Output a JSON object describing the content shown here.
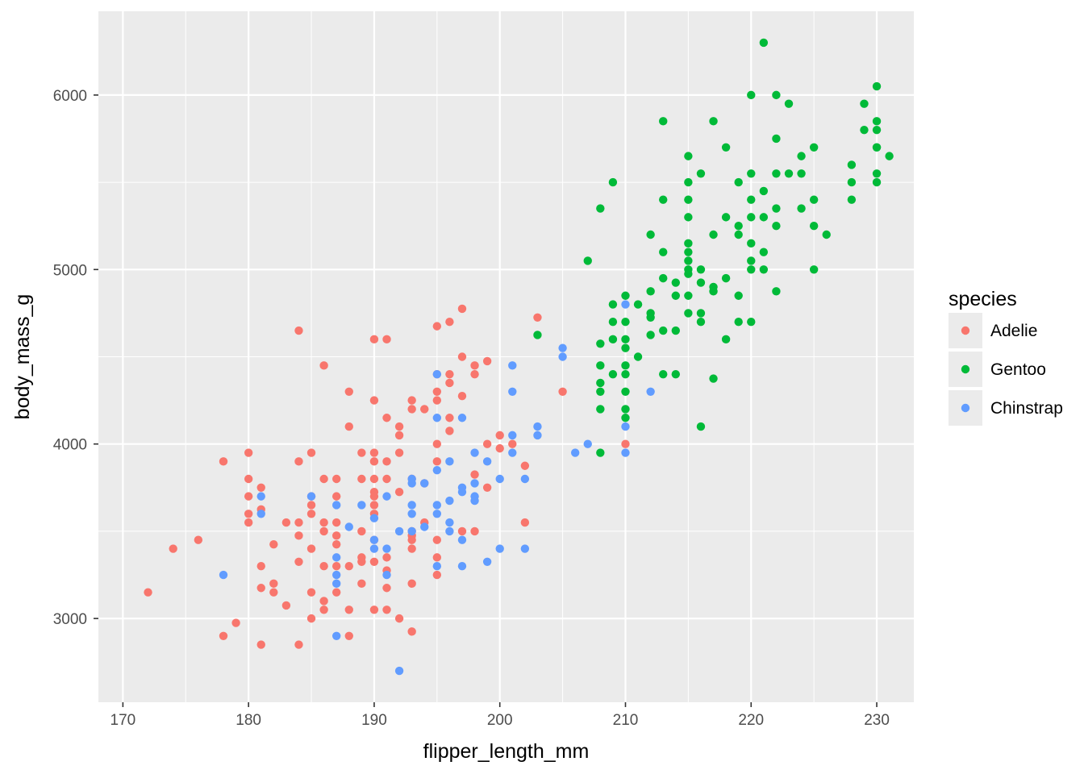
{
  "colors": {
    "panel_bg": "#EBEBEB",
    "grid_major": "#FFFFFF",
    "tick_text": "#4D4D4D",
    "axis_title": "#000000",
    "legend_key_bg": "#EBEBEB"
  },
  "chart_data": {
    "type": "scatter",
    "xlabel": "flipper_length_mm",
    "ylabel": "body_mass_g",
    "xlim": [
      168.05,
      232.95
    ],
    "ylim": [
      2520,
      6480
    ],
    "x_ticks": [
      170,
      180,
      190,
      200,
      210,
      220,
      230
    ],
    "x_tick_labels": [
      "170",
      "180",
      "190",
      "200",
      "210",
      "220",
      "230"
    ],
    "y_ticks": [
      3000,
      4000,
      5000,
      6000
    ],
    "y_tick_labels": [
      "3000",
      "4000",
      "5000",
      "6000"
    ],
    "grid": true,
    "legend": {
      "title": "species",
      "position": "right",
      "entries": [
        "Adelie",
        "Gentoo",
        "Chinstrap"
      ]
    },
    "series": [
      {
        "name": "Adelie",
        "color": "#F8766D",
        "points": [
          [
            172,
            3150
          ],
          [
            174,
            3400
          ],
          [
            176,
            3450
          ],
          [
            178,
            3900
          ],
          [
            178,
            2900
          ],
          [
            179,
            2975
          ],
          [
            180,
            3950
          ],
          [
            180,
            3800
          ],
          [
            180,
            3700
          ],
          [
            180,
            3600
          ],
          [
            180,
            3550
          ],
          [
            181,
            3750
          ],
          [
            181,
            3625
          ],
          [
            181,
            3300
          ],
          [
            181,
            3175
          ],
          [
            181,
            2850
          ],
          [
            182,
            3425
          ],
          [
            182,
            3200
          ],
          [
            182,
            3150
          ],
          [
            183,
            3550
          ],
          [
            183,
            3075
          ],
          [
            184,
            4650
          ],
          [
            184,
            3900
          ],
          [
            184,
            3550
          ],
          [
            184,
            3475
          ],
          [
            184,
            3325
          ],
          [
            184,
            2850
          ],
          [
            185,
            3950
          ],
          [
            185,
            3700
          ],
          [
            185,
            3650
          ],
          [
            185,
            3600
          ],
          [
            185,
            3400
          ],
          [
            185,
            3150
          ],
          [
            185,
            3000
          ],
          [
            186,
            4450
          ],
          [
            186,
            3800
          ],
          [
            186,
            3550
          ],
          [
            186,
            3500
          ],
          [
            186,
            3300
          ],
          [
            186,
            3100
          ],
          [
            186,
            3050
          ],
          [
            187,
            3800
          ],
          [
            187,
            3700
          ],
          [
            187,
            3550
          ],
          [
            187,
            3475
          ],
          [
            187,
            3425
          ],
          [
            187,
            3300
          ],
          [
            187,
            3150
          ],
          [
            188,
            4300
          ],
          [
            188,
            4100
          ],
          [
            188,
            3300
          ],
          [
            188,
            3050
          ],
          [
            188,
            2900
          ],
          [
            189,
            3950
          ],
          [
            189,
            3800
          ],
          [
            189,
            3500
          ],
          [
            189,
            3350
          ],
          [
            189,
            3325
          ],
          [
            189,
            3200
          ],
          [
            190,
            4600
          ],
          [
            190,
            4250
          ],
          [
            190,
            3950
          ],
          [
            190,
            3900
          ],
          [
            190,
            3800
          ],
          [
            190,
            3725
          ],
          [
            190,
            3700
          ],
          [
            190,
            3650
          ],
          [
            190,
            3600
          ],
          [
            190,
            3450
          ],
          [
            190,
            3325
          ],
          [
            190,
            3050
          ],
          [
            191,
            4600
          ],
          [
            191,
            4150
          ],
          [
            191,
            3900
          ],
          [
            191,
            3800
          ],
          [
            191,
            3350
          ],
          [
            191,
            3275
          ],
          [
            191,
            3175
          ],
          [
            191,
            3050
          ],
          [
            192,
            4100
          ],
          [
            192,
            4050
          ],
          [
            192,
            3950
          ],
          [
            192,
            3725
          ],
          [
            192,
            3000
          ],
          [
            193,
            4250
          ],
          [
            193,
            4200
          ],
          [
            193,
            3800
          ],
          [
            193,
            3500
          ],
          [
            193,
            3475
          ],
          [
            193,
            3450
          ],
          [
            193,
            3400
          ],
          [
            193,
            3200
          ],
          [
            193,
            2925
          ],
          [
            194,
            4200
          ],
          [
            194,
            3775
          ],
          [
            194,
            3550
          ],
          [
            195,
            4675
          ],
          [
            195,
            4400
          ],
          [
            195,
            4300
          ],
          [
            195,
            4250
          ],
          [
            195,
            4000
          ],
          [
            195,
            3900
          ],
          [
            195,
            3450
          ],
          [
            195,
            3350
          ],
          [
            195,
            3250
          ],
          [
            196,
            4700
          ],
          [
            196,
            4400
          ],
          [
            196,
            4350
          ],
          [
            196,
            4150
          ],
          [
            196,
            4075
          ],
          [
            197,
            4775
          ],
          [
            197,
            4500
          ],
          [
            197,
            4275
          ],
          [
            197,
            3500
          ],
          [
            198,
            4450
          ],
          [
            198,
            4400
          ],
          [
            198,
            3825
          ],
          [
            198,
            3500
          ],
          [
            199,
            4475
          ],
          [
            199,
            3750
          ],
          [
            199,
            4000
          ],
          [
            200,
            4050
          ],
          [
            200,
            3975
          ],
          [
            201,
            4000
          ],
          [
            202,
            3875
          ],
          [
            202,
            3550
          ],
          [
            203,
            4725
          ],
          [
            205,
            4300
          ],
          [
            210,
            4000
          ]
        ]
      },
      {
        "name": "Gentoo",
        "color": "#00BA38",
        "points": [
          [
            203,
            4625
          ],
          [
            207,
            5050
          ],
          [
            208,
            5350
          ],
          [
            208,
            4575
          ],
          [
            208,
            4450
          ],
          [
            208,
            4300
          ],
          [
            208,
            4200
          ],
          [
            208,
            3950
          ],
          [
            208,
            4350
          ],
          [
            209,
            5500
          ],
          [
            209,
            4800
          ],
          [
            209,
            4700
          ],
          [
            209,
            4600
          ],
          [
            209,
            4400
          ],
          [
            210,
            4850
          ],
          [
            210,
            4700
          ],
          [
            210,
            4600
          ],
          [
            210,
            4550
          ],
          [
            210,
            4450
          ],
          [
            210,
            4400
          ],
          [
            210,
            4300
          ],
          [
            210,
            4200
          ],
          [
            210,
            4150
          ],
          [
            211,
            4800
          ],
          [
            211,
            4500
          ],
          [
            212,
            5200
          ],
          [
            212,
            4875
          ],
          [
            212,
            4750
          ],
          [
            212,
            4725
          ],
          [
            212,
            4625
          ],
          [
            213,
            5850
          ],
          [
            213,
            5400
          ],
          [
            213,
            5100
          ],
          [
            213,
            4950
          ],
          [
            213,
            4650
          ],
          [
            213,
            4400
          ],
          [
            214,
            4925
          ],
          [
            214,
            4850
          ],
          [
            214,
            4650
          ],
          [
            214,
            4400
          ],
          [
            215,
            5650
          ],
          [
            215,
            5500
          ],
          [
            215,
            5400
          ],
          [
            215,
            5300
          ],
          [
            215,
            5150
          ],
          [
            215,
            5100
          ],
          [
            215,
            5050
          ],
          [
            215,
            5000
          ],
          [
            215,
            4975
          ],
          [
            215,
            4850
          ],
          [
            215,
            4750
          ],
          [
            216,
            5550
          ],
          [
            216,
            5000
          ],
          [
            216,
            4925
          ],
          [
            216,
            4750
          ],
          [
            216,
            4700
          ],
          [
            216,
            4100
          ],
          [
            217,
            5850
          ],
          [
            217,
            5200
          ],
          [
            217,
            4900
          ],
          [
            217,
            4875
          ],
          [
            217,
            4375
          ],
          [
            218,
            5700
          ],
          [
            218,
            5300
          ],
          [
            218,
            4950
          ],
          [
            218,
            4600
          ],
          [
            219,
            5500
          ],
          [
            219,
            5250
          ],
          [
            219,
            5200
          ],
          [
            219,
            4850
          ],
          [
            219,
            4700
          ],
          [
            220,
            6000
          ],
          [
            220,
            5550
          ],
          [
            220,
            5400
          ],
          [
            220,
            5300
          ],
          [
            220,
            5150
          ],
          [
            220,
            5050
          ],
          [
            220,
            5000
          ],
          [
            220,
            4700
          ],
          [
            221,
            6300
          ],
          [
            221,
            5450
          ],
          [
            221,
            5300
          ],
          [
            221,
            5100
          ],
          [
            221,
            5000
          ],
          [
            222,
            6000
          ],
          [
            222,
            5750
          ],
          [
            222,
            5550
          ],
          [
            222,
            5350
          ],
          [
            222,
            5250
          ],
          [
            222,
            4875
          ],
          [
            223,
            5950
          ],
          [
            223,
            5550
          ],
          [
            224,
            5650
          ],
          [
            224,
            5550
          ],
          [
            224,
            5350
          ],
          [
            225,
            5700
          ],
          [
            225,
            5400
          ],
          [
            225,
            5250
          ],
          [
            225,
            5000
          ],
          [
            226,
            5200
          ],
          [
            228,
            5600
          ],
          [
            228,
            5500
          ],
          [
            228,
            5400
          ],
          [
            229,
            5950
          ],
          [
            229,
            5800
          ],
          [
            230,
            6050
          ],
          [
            230,
            5850
          ],
          [
            230,
            5800
          ],
          [
            230,
            5700
          ],
          [
            230,
            5550
          ],
          [
            230,
            5500
          ],
          [
            230,
            5700
          ],
          [
            231,
            5650
          ]
        ]
      },
      {
        "name": "Chinstrap",
        "color": "#619CFF",
        "points": [
          [
            178,
            3250
          ],
          [
            181,
            3700
          ],
          [
            181,
            3600
          ],
          [
            185,
            3700
          ],
          [
            187,
            3650
          ],
          [
            187,
            3350
          ],
          [
            187,
            3250
          ],
          [
            187,
            3200
          ],
          [
            187,
            2900
          ],
          [
            188,
            3525
          ],
          [
            189,
            3650
          ],
          [
            190,
            3575
          ],
          [
            190,
            3450
          ],
          [
            190,
            3400
          ],
          [
            191,
            3700
          ],
          [
            191,
            3400
          ],
          [
            191,
            3250
          ],
          [
            192,
            3500
          ],
          [
            192,
            2700
          ],
          [
            193,
            3800
          ],
          [
            193,
            3775
          ],
          [
            193,
            3650
          ],
          [
            193,
            3600
          ],
          [
            193,
            3500
          ],
          [
            194,
            3775
          ],
          [
            194,
            3525
          ],
          [
            195,
            4400
          ],
          [
            195,
            4150
          ],
          [
            195,
            3850
          ],
          [
            195,
            3650
          ],
          [
            195,
            3600
          ],
          [
            195,
            3300
          ],
          [
            196,
            3900
          ],
          [
            196,
            3675
          ],
          [
            196,
            3550
          ],
          [
            196,
            3500
          ],
          [
            197,
            4150
          ],
          [
            197,
            3750
          ],
          [
            197,
            3725
          ],
          [
            197,
            3450
          ],
          [
            197,
            3300
          ],
          [
            198,
            3950
          ],
          [
            198,
            3775
          ],
          [
            198,
            3700
          ],
          [
            198,
            3675
          ],
          [
            199,
            3900
          ],
          [
            199,
            3325
          ],
          [
            200,
            3800
          ],
          [
            200,
            3400
          ],
          [
            201,
            4450
          ],
          [
            201,
            4300
          ],
          [
            201,
            4050
          ],
          [
            201,
            3950
          ],
          [
            202,
            3800
          ],
          [
            202,
            3400
          ],
          [
            203,
            4100
          ],
          [
            203,
            4050
          ],
          [
            205,
            4550
          ],
          [
            205,
            4500
          ],
          [
            206,
            3950
          ],
          [
            207,
            4000
          ],
          [
            210,
            4800
          ],
          [
            210,
            4100
          ],
          [
            210,
            3950
          ],
          [
            212,
            4300
          ]
        ]
      }
    ]
  }
}
